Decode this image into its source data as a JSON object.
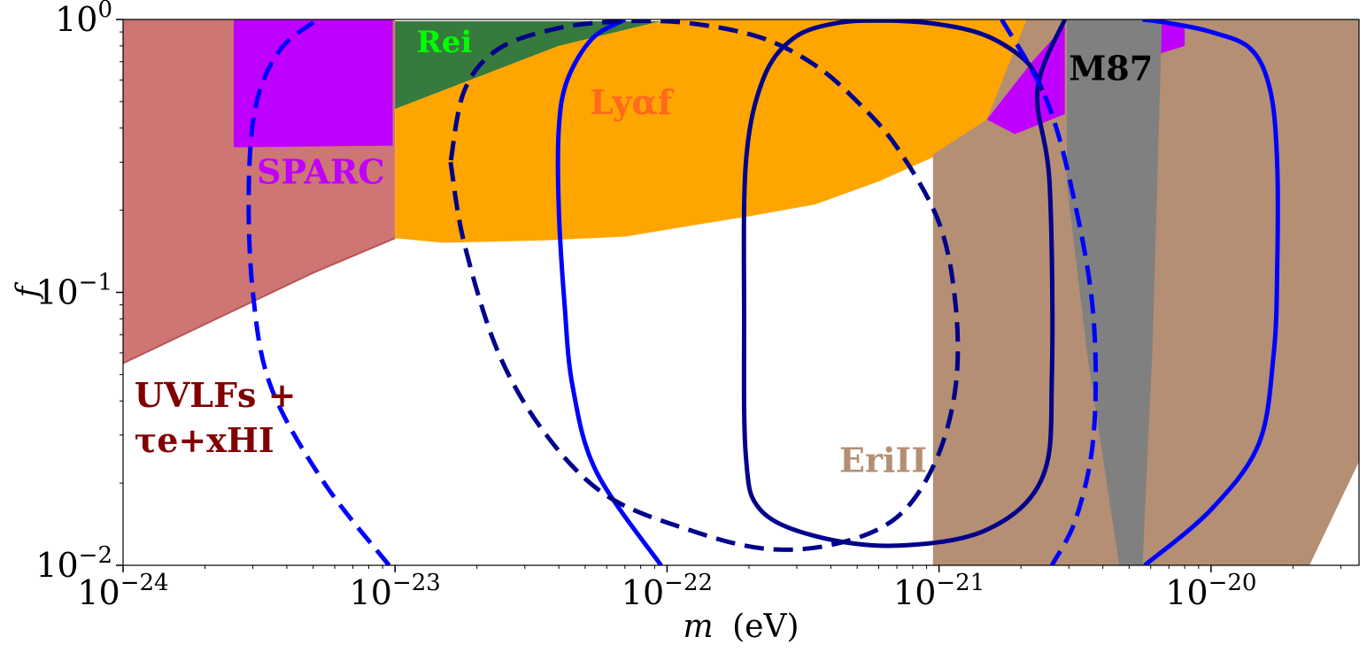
{
  "chart_data": {
    "type": "exclusion-plot",
    "xscale": "log",
    "yscale": "log",
    "xlim": [
      1e-24,
      3.5e-20
    ],
    "ylim": [
      0.01,
      1.0
    ],
    "xlabel_var": "m",
    "xlabel_unit": "(eV)",
    "ylabel": "f",
    "xticks": [
      {
        "value": 1e-24,
        "base": "10",
        "exp": "−24"
      },
      {
        "value": 1e-23,
        "base": "10",
        "exp": "−23"
      },
      {
        "value": 1e-22,
        "base": "10",
        "exp": "−22"
      },
      {
        "value": 1e-21,
        "base": "10",
        "exp": "−21"
      },
      {
        "value": 1e-20,
        "base": "10",
        "exp": "−20"
      }
    ],
    "yticks": [
      {
        "value": 0.01,
        "base": "10",
        "exp": "−2"
      },
      {
        "value": 0.1,
        "base": "10",
        "exp": "−1"
      },
      {
        "value": 1.0,
        "base": "10",
        "exp": "0"
      }
    ],
    "regions": [
      {
        "name": "UVLFs + tau_e + x_HI",
        "color": "#cd7674",
        "points": [
          [
            1e-24,
            0.055
          ],
          [
            5e-24,
            0.118
          ],
          [
            1e-23,
            0.158
          ],
          [
            1e-23,
            1.0
          ],
          [
            1e-24,
            1.0
          ]
        ]
      },
      {
        "name": "SPARC",
        "color": "#bf00ff",
        "points": [
          [
            2.55e-24,
            0.34
          ],
          [
            9.8e-24,
            0.345
          ],
          [
            9.8e-24,
            1.0
          ],
          [
            2.55e-24,
            1.0
          ]
        ]
      },
      {
        "name": "Rei",
        "color": "#377a3d",
        "points": [
          [
            1e-23,
            0.47
          ],
          [
            4e-23,
            0.8
          ],
          [
            9.5e-23,
            0.985
          ],
          [
            1e-23,
            0.985
          ]
        ]
      },
      {
        "name": "Ly alpha f",
        "color": "#ffa500",
        "points": [
          [
            1e-23,
            0.158
          ],
          [
            1.5e-23,
            0.152
          ],
          [
            3.5e-23,
            0.155
          ],
          [
            7e-23,
            0.16
          ],
          [
            1.2e-22,
            0.175
          ],
          [
            2e-22,
            0.19
          ],
          [
            3.5e-22,
            0.21
          ],
          [
            6e-22,
            0.255
          ],
          [
            1e-21,
            0.32
          ],
          [
            1.5e-21,
            0.43
          ],
          [
            2.2e-21,
            0.7
          ],
          [
            2.9e-21,
            1.0
          ],
          [
            1e-22,
            1.0
          ],
          [
            9.5e-23,
            0.985
          ],
          [
            4e-23,
            0.8
          ],
          [
            1e-23,
            0.47
          ]
        ]
      },
      {
        "name": "Ly alpha f upper strip",
        "color": "#ffa500",
        "points": [
          [
            6.5e-21,
            0.975
          ],
          [
            2.8e-20,
            0.975
          ],
          [
            2.8e-20,
            1.0
          ],
          [
            6.5e-21,
            1.0
          ]
        ]
      },
      {
        "name": "EriII",
        "color": "#b48f74",
        "points": [
          [
            9.5e-22,
            0.01
          ],
          [
            2.3e-20,
            0.01
          ],
          [
            3.5e-20,
            0.024
          ],
          [
            3.5e-20,
            1.0
          ],
          [
            2.1e-21,
            1.0
          ],
          [
            1.5e-21,
            0.43
          ],
          [
            9.5e-22,
            0.32
          ]
        ]
      },
      {
        "name": "extra magenta",
        "color": "#bf00ff",
        "points": [
          [
            1.5e-21,
            0.43
          ],
          [
            2.2e-21,
            0.7
          ],
          [
            2.9e-21,
            0.95
          ],
          [
            2.9e-21,
            0.45
          ],
          [
            1.9e-21,
            0.38
          ]
        ]
      },
      {
        "name": "extra magenta right",
        "color": "#bf00ff",
        "points": [
          [
            6.5e-21,
            0.975
          ],
          [
            8e-21,
            0.95
          ],
          [
            8e-21,
            0.8
          ],
          [
            6.5e-21,
            0.75
          ]
        ]
      },
      {
        "name": "M87",
        "color": "#808080",
        "points": [
          [
            2.95e-21,
            1.0
          ],
          [
            2.95e-21,
            0.25
          ],
          [
            3.5e-21,
            0.06
          ],
          [
            4.6e-21,
            0.01
          ],
          [
            5.6e-21,
            0.01
          ],
          [
            6.1e-21,
            0.065
          ],
          [
            6.6e-21,
            1.0
          ]
        ]
      }
    ],
    "curves": [
      {
        "name": "blue solid",
        "color": "#0000ff",
        "dash": false,
        "points": [
          [
            9.5e-23,
            0.01
          ],
          [
            5.5e-23,
            0.022
          ],
          [
            4.5e-23,
            0.045
          ],
          [
            4.2e-23,
            0.09
          ],
          [
            4e-23,
            0.2
          ],
          [
            4e-23,
            0.4
          ],
          [
            4.3e-23,
            0.6
          ],
          [
            5.3e-23,
            0.85
          ],
          [
            7e-23,
            1.0
          ]
        ]
      },
      {
        "name": "blue solid right",
        "color": "#0000ff",
        "dash": false,
        "points": [
          [
            5.7e-21,
            0.01
          ],
          [
            1e-20,
            0.016
          ],
          [
            1.5e-20,
            0.028
          ],
          [
            1.7e-20,
            0.06
          ],
          [
            1.75e-20,
            0.12
          ],
          [
            1.75e-20,
            0.3
          ],
          [
            1.65e-20,
            0.55
          ],
          [
            1.4e-20,
            0.78
          ],
          [
            1e-20,
            0.9
          ],
          [
            7e-21,
            0.97
          ],
          [
            5.6e-21,
            1.0
          ]
        ]
      },
      {
        "name": "navy solid",
        "color": "#00008b",
        "dash": false,
        "points": [
          [
            2.9e-21,
            1.0
          ],
          [
            2.3e-21,
            0.55
          ],
          [
            2.55e-21,
            0.25
          ],
          [
            2.6e-21,
            0.05
          ],
          [
            2.4e-21,
            0.021
          ],
          [
            1.5e-21,
            0.0135
          ],
          [
            7e-22,
            0.0118
          ],
          [
            3.5e-22,
            0.0128
          ],
          [
            2.2e-22,
            0.016
          ],
          [
            1.95e-22,
            0.025
          ],
          [
            1.92e-22,
            0.08
          ],
          [
            1.95e-22,
            0.3
          ],
          [
            2.25e-22,
            0.6
          ],
          [
            2.9e-22,
            0.85
          ],
          [
            4.2e-22,
            0.97
          ],
          [
            6.5e-22,
            0.99
          ],
          [
            1e-21,
            0.96
          ],
          [
            1.5e-21,
            0.87
          ],
          [
            2.1e-21,
            0.7
          ],
          [
            2.4e-21,
            0.55
          ]
        ]
      },
      {
        "name": "navy dashed",
        "color": "#00008b",
        "dash": true,
        "points": [
          [
            1.6e-23,
            0.3
          ],
          [
            1.8e-23,
            0.15
          ],
          [
            2.4e-23,
            0.06
          ],
          [
            3.6e-23,
            0.03
          ],
          [
            6e-23,
            0.018
          ],
          [
            1.2e-22,
            0.0135
          ],
          [
            2.3e-22,
            0.0115
          ],
          [
            4.2e-22,
            0.012
          ],
          [
            7e-22,
            0.015
          ],
          [
            9.7e-22,
            0.024
          ],
          [
            1.15e-21,
            0.045
          ],
          [
            1.15e-21,
            0.09
          ],
          [
            1e-21,
            0.18
          ],
          [
            7e-22,
            0.34
          ],
          [
            5e-22,
            0.5
          ],
          [
            3.5e-22,
            0.68
          ],
          [
            2.2e-22,
            0.86
          ],
          [
            1.2e-22,
            0.97
          ],
          [
            7e-23,
            0.985
          ],
          [
            4e-23,
            0.93
          ],
          [
            2.4e-23,
            0.78
          ],
          [
            1.8e-23,
            0.55
          ],
          [
            1.6e-23,
            0.3
          ]
        ]
      },
      {
        "name": "blue dashed left",
        "color": "#0000ff",
        "dash": true,
        "points": [
          [
            9.5e-24,
            0.01
          ],
          [
            5.5e-24,
            0.02
          ],
          [
            3.5e-24,
            0.045
          ],
          [
            3e-24,
            0.1
          ],
          [
            2.9e-24,
            0.25
          ],
          [
            3.1e-24,
            0.5
          ],
          [
            3.8e-24,
            0.78
          ],
          [
            5.2e-24,
            1.0
          ]
        ]
      },
      {
        "name": "blue dashed right",
        "color": "#0000ff",
        "dash": true,
        "points": [
          [
            1.7e-21,
            1.0
          ],
          [
            2.5e-21,
            0.5
          ],
          [
            3.2e-21,
            0.2
          ],
          [
            3.7e-21,
            0.08
          ],
          [
            3.7e-21,
            0.03
          ],
          [
            3.2e-21,
            0.015
          ],
          [
            2.6e-21,
            0.01
          ]
        ]
      }
    ],
    "labels": [
      {
        "id": "sparc",
        "text": "SPARC",
        "color": "#bf00ff",
        "x": 3.1e-24,
        "y": 0.25
      },
      {
        "id": "rei",
        "text": "Rei",
        "color": "#00ff00",
        "x": 1.2e-23,
        "y": 0.76
      },
      {
        "id": "lyaf",
        "text": "Lyαf",
        "color": "#ff6a1f",
        "x": 5.2e-23,
        "y": 0.45
      },
      {
        "id": "m87",
        "text": "M87",
        "color": "#000000",
        "x": 3e-21,
        "y": 0.6
      },
      {
        "id": "erii",
        "text": "EriII",
        "color": "#b48f74",
        "x": 4.3e-22,
        "y": 0.022
      },
      {
        "id": "uvlf1",
        "text": "UVLFs +",
        "color": "#800000",
        "x": 1.1e-24,
        "y": 0.038
      },
      {
        "id": "uvlf2",
        "text": "τe+xHI",
        "color": "#800000",
        "x": 1.1e-24,
        "y": 0.026
      }
    ]
  }
}
